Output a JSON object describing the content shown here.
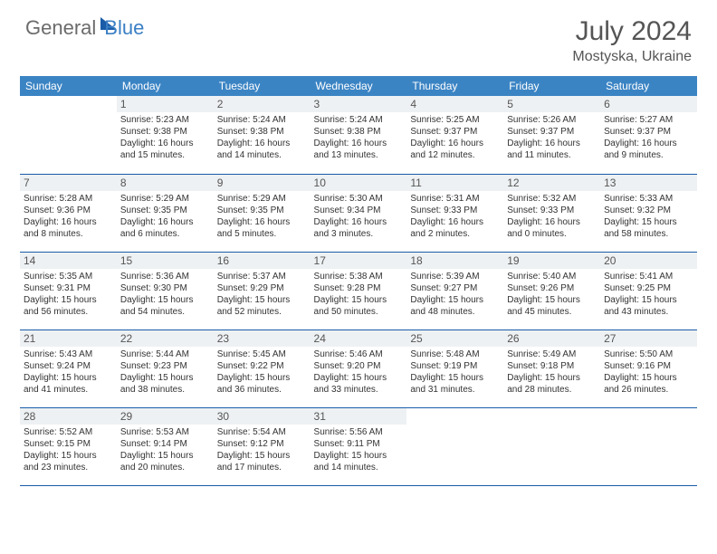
{
  "logo": {
    "part1": "General",
    "part2": "Blue"
  },
  "title": "July 2024",
  "location": "Mostyska, Ukraine",
  "headers": [
    "Sunday",
    "Monday",
    "Tuesday",
    "Wednesday",
    "Thursday",
    "Friday",
    "Saturday"
  ],
  "colors": {
    "header_bg": "#3b84c4",
    "border": "#1a5ca8",
    "daynum_bg": "#eef1f3",
    "text": "#333333"
  },
  "weeks": [
    [
      null,
      {
        "n": "1",
        "sr": "5:23 AM",
        "ss": "9:38 PM",
        "dl": "16 hours and 15 minutes."
      },
      {
        "n": "2",
        "sr": "5:24 AM",
        "ss": "9:38 PM",
        "dl": "16 hours and 14 minutes."
      },
      {
        "n": "3",
        "sr": "5:24 AM",
        "ss": "9:38 PM",
        "dl": "16 hours and 13 minutes."
      },
      {
        "n": "4",
        "sr": "5:25 AM",
        "ss": "9:37 PM",
        "dl": "16 hours and 12 minutes."
      },
      {
        "n": "5",
        "sr": "5:26 AM",
        "ss": "9:37 PM",
        "dl": "16 hours and 11 minutes."
      },
      {
        "n": "6",
        "sr": "5:27 AM",
        "ss": "9:37 PM",
        "dl": "16 hours and 9 minutes."
      }
    ],
    [
      {
        "n": "7",
        "sr": "5:28 AM",
        "ss": "9:36 PM",
        "dl": "16 hours and 8 minutes."
      },
      {
        "n": "8",
        "sr": "5:29 AM",
        "ss": "9:35 PM",
        "dl": "16 hours and 6 minutes."
      },
      {
        "n": "9",
        "sr": "5:29 AM",
        "ss": "9:35 PM",
        "dl": "16 hours and 5 minutes."
      },
      {
        "n": "10",
        "sr": "5:30 AM",
        "ss": "9:34 PM",
        "dl": "16 hours and 3 minutes."
      },
      {
        "n": "11",
        "sr": "5:31 AM",
        "ss": "9:33 PM",
        "dl": "16 hours and 2 minutes."
      },
      {
        "n": "12",
        "sr": "5:32 AM",
        "ss": "9:33 PM",
        "dl": "16 hours and 0 minutes."
      },
      {
        "n": "13",
        "sr": "5:33 AM",
        "ss": "9:32 PM",
        "dl": "15 hours and 58 minutes."
      }
    ],
    [
      {
        "n": "14",
        "sr": "5:35 AM",
        "ss": "9:31 PM",
        "dl": "15 hours and 56 minutes."
      },
      {
        "n": "15",
        "sr": "5:36 AM",
        "ss": "9:30 PM",
        "dl": "15 hours and 54 minutes."
      },
      {
        "n": "16",
        "sr": "5:37 AM",
        "ss": "9:29 PM",
        "dl": "15 hours and 52 minutes."
      },
      {
        "n": "17",
        "sr": "5:38 AM",
        "ss": "9:28 PM",
        "dl": "15 hours and 50 minutes."
      },
      {
        "n": "18",
        "sr": "5:39 AM",
        "ss": "9:27 PM",
        "dl": "15 hours and 48 minutes."
      },
      {
        "n": "19",
        "sr": "5:40 AM",
        "ss": "9:26 PM",
        "dl": "15 hours and 45 minutes."
      },
      {
        "n": "20",
        "sr": "5:41 AM",
        "ss": "9:25 PM",
        "dl": "15 hours and 43 minutes."
      }
    ],
    [
      {
        "n": "21",
        "sr": "5:43 AM",
        "ss": "9:24 PM",
        "dl": "15 hours and 41 minutes."
      },
      {
        "n": "22",
        "sr": "5:44 AM",
        "ss": "9:23 PM",
        "dl": "15 hours and 38 minutes."
      },
      {
        "n": "23",
        "sr": "5:45 AM",
        "ss": "9:22 PM",
        "dl": "15 hours and 36 minutes."
      },
      {
        "n": "24",
        "sr": "5:46 AM",
        "ss": "9:20 PM",
        "dl": "15 hours and 33 minutes."
      },
      {
        "n": "25",
        "sr": "5:48 AM",
        "ss": "9:19 PM",
        "dl": "15 hours and 31 minutes."
      },
      {
        "n": "26",
        "sr": "5:49 AM",
        "ss": "9:18 PM",
        "dl": "15 hours and 28 minutes."
      },
      {
        "n": "27",
        "sr": "5:50 AM",
        "ss": "9:16 PM",
        "dl": "15 hours and 26 minutes."
      }
    ],
    [
      {
        "n": "28",
        "sr": "5:52 AM",
        "ss": "9:15 PM",
        "dl": "15 hours and 23 minutes."
      },
      {
        "n": "29",
        "sr": "5:53 AM",
        "ss": "9:14 PM",
        "dl": "15 hours and 20 minutes."
      },
      {
        "n": "30",
        "sr": "5:54 AM",
        "ss": "9:12 PM",
        "dl": "15 hours and 17 minutes."
      },
      {
        "n": "31",
        "sr": "5:56 AM",
        "ss": "9:11 PM",
        "dl": "15 hours and 14 minutes."
      },
      null,
      null,
      null
    ]
  ],
  "labels": {
    "sunrise": "Sunrise:",
    "sunset": "Sunset:",
    "daylight": "Daylight:"
  }
}
